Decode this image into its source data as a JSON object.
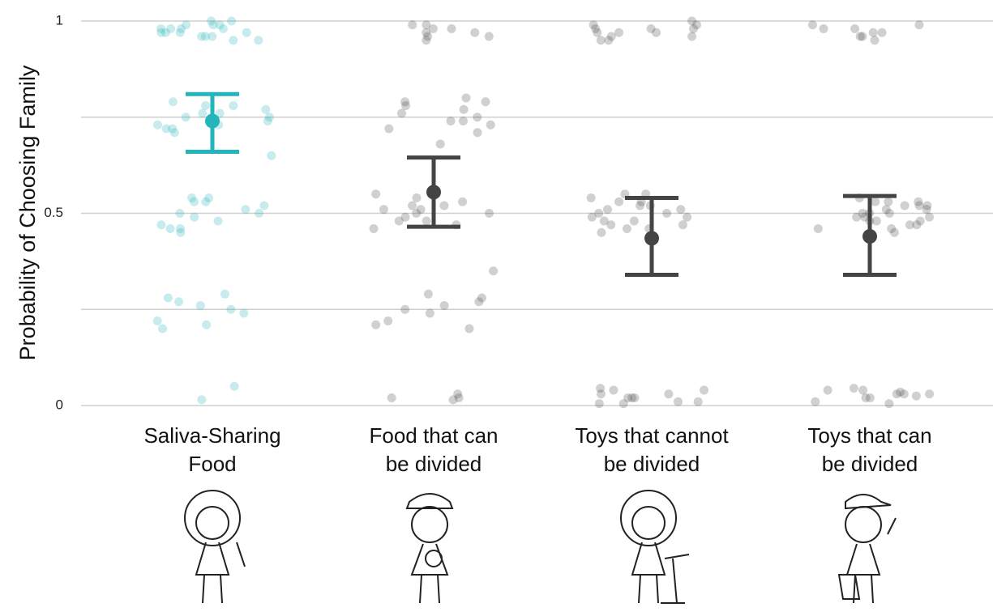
{
  "chart_data": {
    "type": "jitter",
    "y_label": "Probability of Choosing Family",
    "categories": [
      [
        "Saliva-Sharing",
        "Food"
      ],
      [
        "Food that can",
        "be divided"
      ],
      [
        "Toys that cannot",
        "be divided"
      ],
      [
        "Toys that can",
        "be divided"
      ]
    ],
    "ylim": [
      0,
      1
    ],
    "yticks": [
      0,
      0.5,
      1
    ],
    "minor_grid": [
      0.25,
      0.75
    ],
    "grid": true,
    "groups": [
      {
        "color": "#22b5b9",
        "mean": 0.74,
        "lower": 0.66,
        "upper": 0.81,
        "points": [
          1,
          0.99,
          0.97,
          0.98,
          0.96,
          0.99,
          0.97,
          0.95,
          0.98,
          0.96,
          0.99,
          0.97,
          1,
          0.98,
          0.96,
          0.97,
          0.95,
          0.98,
          0.76,
          0.74,
          0.79,
          0.73,
          0.77,
          0.75,
          0.72,
          0.78,
          0.74,
          0.71,
          0.76,
          0.73,
          0.78,
          0.75,
          0.72,
          0.65,
          0.53,
          0.5,
          0.48,
          0.54,
          0.46,
          0.51,
          0.49,
          0.53,
          0.47,
          0.52,
          0.45,
          0.5,
          0.54,
          0.46,
          0.29,
          0.26,
          0.24,
          0.25,
          0.28,
          0.27,
          0.21,
          0.2,
          0.22,
          0.015,
          0.05
        ]
      },
      {
        "color": "#444444",
        "mean": 0.555,
        "lower": 0.465,
        "upper": 0.645,
        "points": [
          0.98,
          0.96,
          0.99,
          0.97,
          0.98,
          0.95,
          0.97,
          0.96,
          0.99,
          0.79,
          0.76,
          0.74,
          0.72,
          0.78,
          0.8,
          0.75,
          0.73,
          0.79,
          0.71,
          0.77,
          0.74,
          0.68,
          0.55,
          0.52,
          0.5,
          0.48,
          0.51,
          0.47,
          0.53,
          0.49,
          0.5,
          0.46,
          0.54,
          0.52,
          0.48,
          0.51,
          0.35,
          0.29,
          0.27,
          0.26,
          0.24,
          0.22,
          0.2,
          0.28,
          0.25,
          0.21,
          0.02,
          0.02,
          0.03,
          0.015
        ]
      },
      {
        "color": "#444444",
        "mean": 0.435,
        "lower": 0.34,
        "upper": 0.54,
        "points": [
          0.99,
          0.97,
          1,
          0.96,
          0.98,
          0.95,
          0.99,
          0.97,
          0.96,
          0.98,
          0.95,
          0.98,
          0.97,
          0.55,
          0.52,
          0.5,
          0.48,
          0.53,
          0.46,
          0.49,
          0.51,
          0.47,
          0.54,
          0.5,
          0.45,
          0.52,
          0.48,
          0.46,
          0.53,
          0.49,
          0.47,
          0.55,
          0.51,
          0.02,
          0.04,
          0.01,
          0.03,
          0.005,
          0.02,
          0.045,
          0.01,
          0.03,
          0.005,
          0.04,
          0.02
        ]
      },
      {
        "color": "#444444",
        "mean": 0.44,
        "lower": 0.34,
        "upper": 0.545,
        "points": [
          0.99,
          0.97,
          0.96,
          0.98,
          0.95,
          0.99,
          0.97,
          0.96,
          0.98,
          0.53,
          0.5,
          0.48,
          0.52,
          0.46,
          0.49,
          0.51,
          0.47,
          0.54,
          0.5,
          0.45,
          0.52,
          0.48,
          0.53,
          0.49,
          0.51,
          0.47,
          0.5,
          0.46,
          0.52,
          0.48,
          0.53,
          0.49,
          0.035,
          0.03,
          0.02,
          0.04,
          0.025,
          0.03,
          0.01,
          0.045,
          0.02,
          0.03,
          0.005,
          0.04
        ]
      }
    ]
  }
}
